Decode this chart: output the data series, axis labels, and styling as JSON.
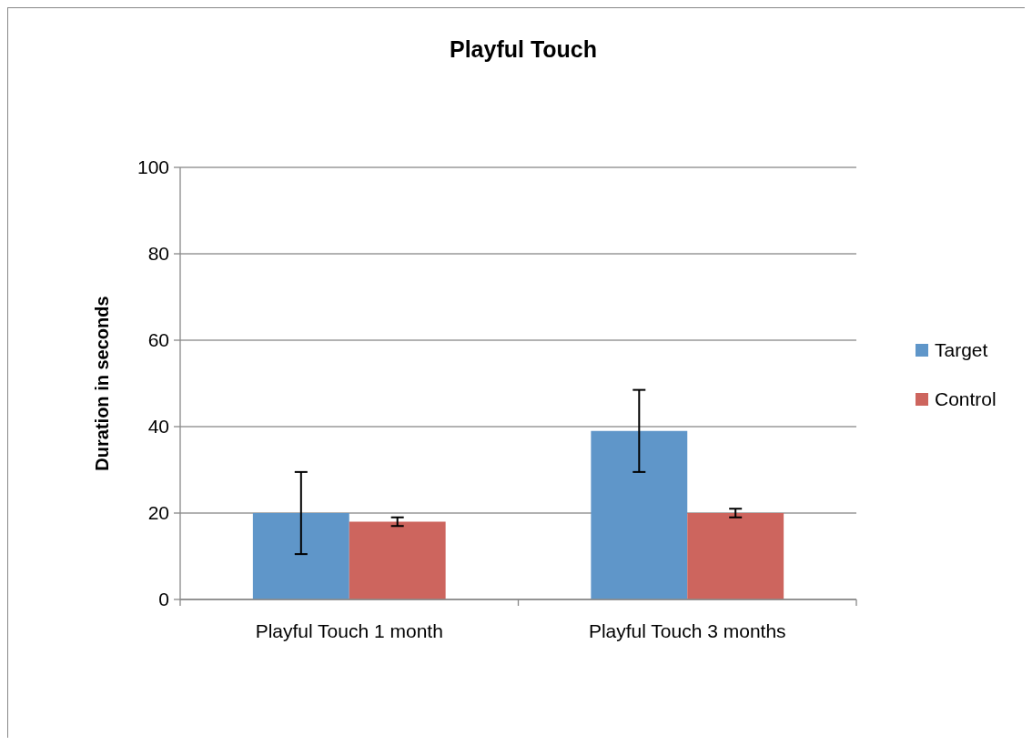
{
  "chart_data": {
    "type": "bar",
    "title": "Playful Touch",
    "ylabel": "Duration in seconds",
    "categories": [
      "Playful Touch 1 month",
      "Playful Touch 3 months"
    ],
    "series": [
      {
        "name": "Target",
        "color": "#5f96c9",
        "values": [
          20,
          39
        ],
        "errors": [
          9.5,
          9.5
        ]
      },
      {
        "name": "Control",
        "color": "#cd655e",
        "values": [
          18,
          20
        ],
        "errors": [
          1,
          1
        ]
      }
    ],
    "ylim": [
      0,
      100
    ],
    "yticks": [
      0,
      20,
      40,
      60,
      80,
      100
    ],
    "grid": "y",
    "legend": "right"
  }
}
